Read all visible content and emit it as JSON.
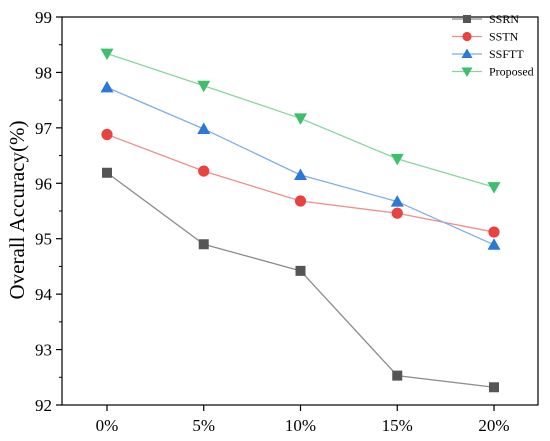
{
  "chart_data": {
    "type": "line",
    "title": "",
    "xlabel": "",
    "ylabel": "Overall Accuracy(%)",
    "categories": [
      "0%",
      "5%",
      "10%",
      "15%",
      "20%"
    ],
    "ylim": [
      92,
      99
    ],
    "yticks": [
      92,
      93,
      94,
      95,
      96,
      97,
      98,
      99
    ],
    "ytick_labels": [
      "92",
      "93",
      "94",
      "95",
      "96",
      "97",
      "98",
      "99"
    ],
    "grid": false,
    "legend_position": "top-right",
    "series": [
      {
        "name": "SSRN",
        "values": [
          96.19,
          94.9,
          94.42,
          92.53,
          92.32
        ],
        "color": "#555555",
        "line_color": "#8c8c8c",
        "marker": "square"
      },
      {
        "name": "SSTN",
        "values": [
          96.88,
          96.22,
          95.68,
          95.46,
          95.12
        ],
        "color": "#e8433f",
        "line_color": "#ee8f8c",
        "marker": "circle"
      },
      {
        "name": "SSFTT",
        "values": [
          97.73,
          96.98,
          96.15,
          95.67,
          94.89
        ],
        "color": "#2a78d8",
        "line_color": "#7eaee6",
        "marker": "triangle-up"
      },
      {
        "name": "Proposed",
        "values": [
          98.34,
          97.76,
          97.17,
          96.44,
          95.93
        ],
        "color": "#3fbf6b",
        "line_color": "#87d6a1",
        "marker": "triangle-down"
      }
    ]
  }
}
